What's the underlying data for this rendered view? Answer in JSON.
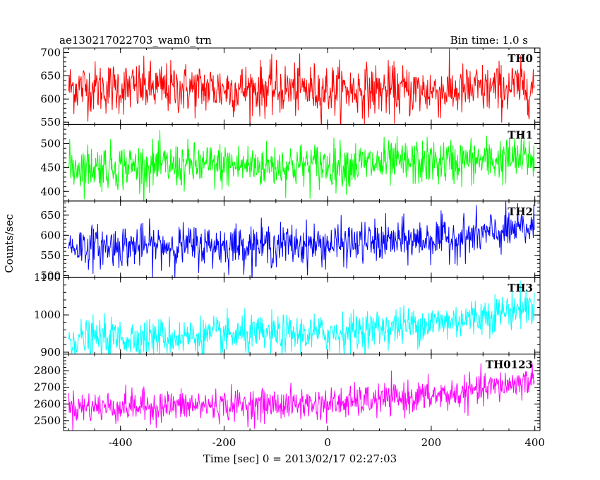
{
  "header": {
    "left_title": "ae130217022703_wam0_trn",
    "right_title": "Bin time: 1.0 s"
  },
  "axes": {
    "xlabel": "Time [sec] 0 = 2013/02/17 02:27:03",
    "ylabel": "Counts/sec"
  },
  "chart_data": {
    "type": "line",
    "title": "ae130217022703_wam0_trn",
    "subtitle": "Bin time: 1.0 s",
    "xlabel": "Time [sec] 0 = 2013/02/17 02:27:03",
    "ylabel": "Counts/sec",
    "xlim": [
      -510,
      410
    ],
    "xticks": [
      -400,
      -200,
      0,
      200,
      400
    ],
    "x_range_data": [
      -500,
      399
    ],
    "grid": false,
    "legend": "none",
    "panels": [
      {
        "name": "TH0",
        "color": "#ff0000",
        "ylim": [
          545,
          710
        ],
        "yticks": [
          550,
          600,
          650,
          700
        ],
        "trend": [
          {
            "x": -500,
            "y": 625
          },
          {
            "x": 0,
            "y": 620
          },
          {
            "x": 250,
            "y": 617
          },
          {
            "x": 399,
            "y": 628
          }
        ],
        "noise": 28
      },
      {
        "name": "TH1",
        "color": "#00ff00",
        "ylim": [
          380,
          540
        ],
        "yticks": [
          400,
          450,
          500
        ],
        "trend": [
          {
            "x": -500,
            "y": 452
          },
          {
            "x": 0,
            "y": 455
          },
          {
            "x": 250,
            "y": 462
          },
          {
            "x": 399,
            "y": 470
          }
        ],
        "noise": 24
      },
      {
        "name": "TH2",
        "color": "#0000ff",
        "ylim": [
          495,
          685
        ],
        "yticks": [
          500,
          550,
          600,
          650
        ],
        "trend": [
          {
            "x": -500,
            "y": 572
          },
          {
            "x": 0,
            "y": 577
          },
          {
            "x": 250,
            "y": 593
          },
          {
            "x": 399,
            "y": 618
          }
        ],
        "noise": 26
      },
      {
        "name": "TH3",
        "color": "#00ffff",
        "ylim": [
          895,
          1100
        ],
        "yticks": [
          900,
          1000,
          1100
        ],
        "trend": [
          {
            "x": -500,
            "y": 935
          },
          {
            "x": 0,
            "y": 950
          },
          {
            "x": 250,
            "y": 985
          },
          {
            "x": 399,
            "y": 1025
          }
        ],
        "noise": 26
      },
      {
        "name": "TH0123",
        "color": "#ff00ff",
        "ylim": [
          2440,
          2900
        ],
        "yticks": [
          2500,
          2600,
          2700,
          2800
        ],
        "trend": [
          {
            "x": -500,
            "y": 2580
          },
          {
            "x": 0,
            "y": 2600
          },
          {
            "x": 250,
            "y": 2660
          },
          {
            "x": 399,
            "y": 2745
          }
        ],
        "noise": 48
      }
    ]
  }
}
